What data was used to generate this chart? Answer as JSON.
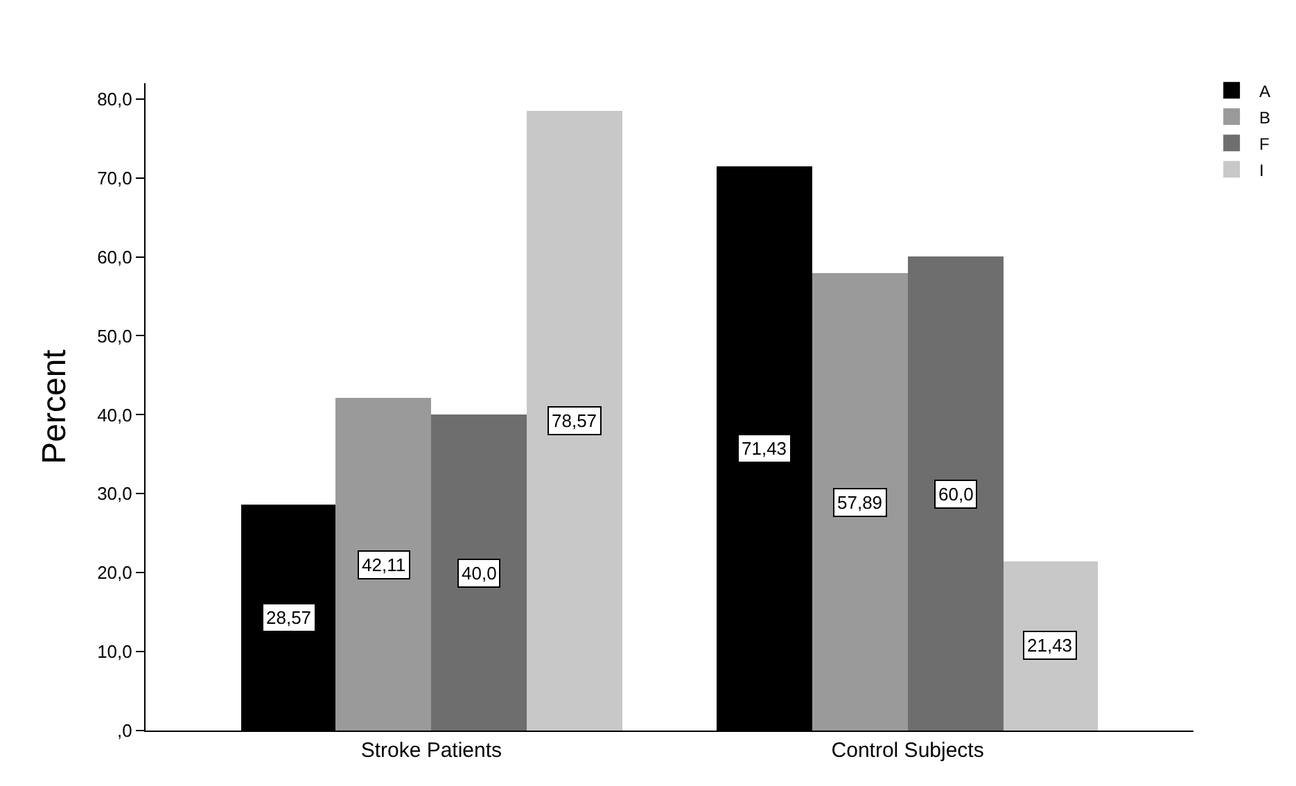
{
  "chart_data": {
    "type": "bar",
    "ylabel": "Percent",
    "categories": [
      "Stroke Patients",
      "Control Subjects"
    ],
    "series": [
      {
        "name": "A",
        "color": "#000000",
        "values": [
          28.57,
          71.43
        ],
        "value_labels": [
          "28,57",
          "71,43"
        ]
      },
      {
        "name": "B",
        "color": "#9a9a9a",
        "values": [
          42.11,
          57.89
        ],
        "value_labels": [
          "42,11",
          "57,89"
        ]
      },
      {
        "name": "F",
        "color": "#6e6e6e",
        "values": [
          40.0,
          60.0
        ],
        "value_labels": [
          "40,0",
          "60,0"
        ]
      },
      {
        "name": "I",
        "color": "#c8c8c8",
        "values": [
          78.57,
          21.43
        ],
        "value_labels": [
          "78,57",
          "21,43"
        ]
      }
    ],
    "ylim": [
      0,
      82
    ],
    "yticks": [
      {
        "value": 0,
        "label": ",0"
      },
      {
        "value": 10,
        "label": "10,0"
      },
      {
        "value": 20,
        "label": "20,0"
      },
      {
        "value": 30,
        "label": "30,0"
      },
      {
        "value": 40,
        "label": "40,0"
      },
      {
        "value": 50,
        "label": "50,0"
      },
      {
        "value": 60,
        "label": "60,0"
      },
      {
        "value": 70,
        "label": "70,0"
      },
      {
        "value": 80,
        "label": "80,0"
      }
    ],
    "legend": "top right"
  }
}
